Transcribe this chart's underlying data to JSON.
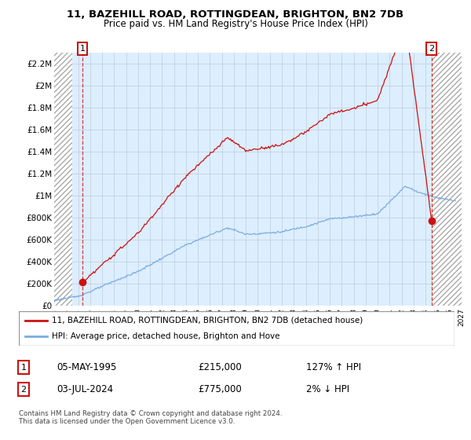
{
  "title_line1": "11, BAZEHILL ROAD, ROTTINGDEAN, BRIGHTON, BN2 7DB",
  "title_line2": "Price paid vs. HM Land Registry's House Price Index (HPI)",
  "ylabel_ticks": [
    "£0",
    "£200K",
    "£400K",
    "£600K",
    "£800K",
    "£1M",
    "£1.2M",
    "£1.4M",
    "£1.6M",
    "£1.8M",
    "£2M",
    "£2.2M"
  ],
  "ytick_values": [
    0,
    200000,
    400000,
    600000,
    800000,
    1000000,
    1200000,
    1400000,
    1600000,
    1800000,
    2000000,
    2200000
  ],
  "ylim": [
    0,
    2300000
  ],
  "xmin_year": 1993,
  "xmax_year": 2027,
  "xtick_years": [
    1993,
    1994,
    1995,
    1996,
    1997,
    1998,
    1999,
    2000,
    2001,
    2002,
    2003,
    2004,
    2005,
    2006,
    2007,
    2008,
    2009,
    2010,
    2011,
    2012,
    2013,
    2014,
    2015,
    2016,
    2017,
    2018,
    2019,
    2020,
    2021,
    2022,
    2023,
    2024,
    2025,
    2026,
    2027
  ],
  "hpi_color": "#7aade0",
  "price_color": "#cc1111",
  "plot_bg_color": "#ddeeff",
  "point1_x": 1995.37,
  "point1_y": 215000,
  "point2_x": 2024.5,
  "point2_y": 775000,
  "legend_line1": "11, BAZEHILL ROAD, ROTTINGDEAN, BRIGHTON, BN2 7DB (detached house)",
  "legend_line2": "HPI: Average price, detached house, Brighton and Hove",
  "annotation1_date": "05-MAY-1995",
  "annotation1_price": "£215,000",
  "annotation1_hpi": "127% ↑ HPI",
  "annotation2_date": "03-JUL-2024",
  "annotation2_price": "£775,000",
  "annotation2_hpi": "2% ↓ HPI",
  "footnote": "Contains HM Land Registry data © Crown copyright and database right 2024.\nThis data is licensed under the Open Government Licence v3.0.",
  "background_color": "#ffffff",
  "grid_color": "#bbccdd"
}
